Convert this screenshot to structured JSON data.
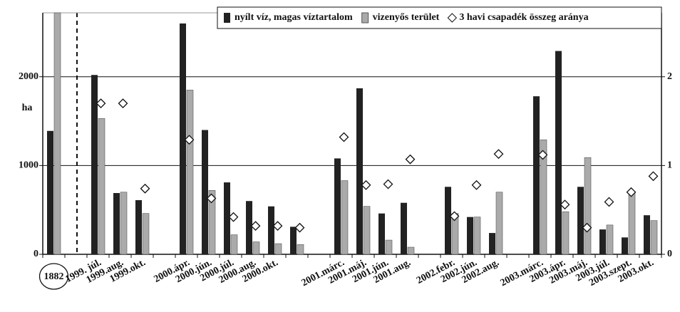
{
  "chart_data": {
    "type": "bar",
    "y_label": "ha",
    "categories": [
      "1882",
      null,
      "1999. júl.",
      "1999.aug.",
      "1999.okt.",
      null,
      "2000.ápr.",
      "2000.jún.",
      "2000.júl.",
      "2000.aug.",
      "2000.okt.",
      null,
      null,
      "2001.márc.",
      "2001.máj.",
      "2001.jún.",
      "2001.aug.",
      null,
      "2002.febr.",
      "2002.jún.",
      "2002.aug.",
      null,
      "2003.márc.",
      "2003.ápr.",
      "2003.máj.",
      "2003.júl.",
      "2003.szept.",
      "2003.okt."
    ],
    "series": [
      {
        "name": "nyílt víz, magas víztartalom",
        "color": "#222222",
        "values": [
          1390,
          null,
          2020,
          690,
          610,
          null,
          2600,
          1400,
          810,
          600,
          540,
          310,
          null,
          1080,
          1870,
          460,
          580,
          null,
          760,
          420,
          240,
          null,
          1780,
          2290,
          760,
          280,
          190,
          440
        ]
      },
      {
        "name": "vizenyős terület",
        "color": "#aaaaaa",
        "values": [
          2720,
          null,
          1530,
          700,
          460,
          null,
          1850,
          720,
          220,
          140,
          120,
          110,
          null,
          830,
          540,
          160,
          80,
          null,
          460,
          420,
          700,
          null,
          1290,
          480,
          1090,
          330,
          690,
          380
        ]
      },
      {
        "name": "3 havi csapadék összeg aránya",
        "color": "#ffffff",
        "axis": "y2",
        "type": "scatter",
        "values": [
          null,
          null,
          1.7,
          1.7,
          0.74,
          null,
          1.29,
          0.63,
          0.42,
          0.32,
          0.32,
          0.3,
          null,
          1.32,
          0.78,
          0.79,
          1.07,
          null,
          0.43,
          0.78,
          1.13,
          null,
          1.12,
          0.56,
          0.3,
          0.59,
          0.7,
          0.88
        ]
      }
    ],
    "ylim": [
      0,
      2720
    ],
    "yticks": [
      0,
      1000,
      2000
    ],
    "y2lim": [
      0,
      2.72
    ],
    "y2ticks": [
      0,
      1,
      2
    ],
    "grid": true,
    "legend": "upper right"
  }
}
